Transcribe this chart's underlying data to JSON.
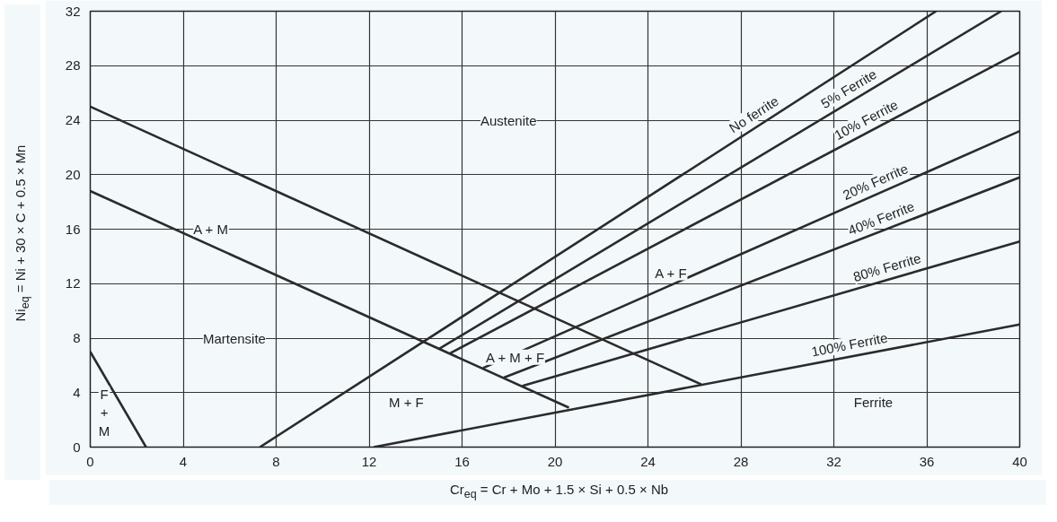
{
  "chart_data": {
    "type": "line",
    "xlabel": "Cr$_{eq}$ = Cr + Mo + 1.5 × Si + 0.5 × Nb",
    "ylabel": "Ni$_{eq}$ = Ni + 30 × C + 0.5 × Mn",
    "xlim": [
      0,
      40
    ],
    "ylim": [
      0,
      32
    ],
    "xticks": [
      0,
      4,
      8,
      12,
      16,
      20,
      24,
      28,
      32,
      36,
      40
    ],
    "yticks": [
      0,
      4,
      8,
      12,
      16,
      20,
      24,
      28,
      32
    ],
    "grid": true,
    "line_style": "solid",
    "marker": "none",
    "series": [
      {
        "color": "#2b2b2b",
        "x": [
          0,
          26.3
        ],
        "values": [
          25,
          4.6
        ]
      },
      {
        "color": "#2b2b2b",
        "x": [
          0,
          20.6
        ],
        "values": [
          18.8,
          2.9
        ]
      },
      {
        "color": "#2b2b2b",
        "x": [
          0,
          2.4
        ],
        "values": [
          7,
          0
        ]
      },
      {
        "name": "No ferrite",
        "color": "#2b2b2b",
        "x": [
          7.3,
          36.4
        ],
        "values": [
          0,
          32
        ]
      },
      {
        "name": "5% Ferrite",
        "color": "#2b2b2b",
        "x": [
          15.0,
          39.2
        ],
        "values": [
          7.2,
          32
        ]
      },
      {
        "name": "10% Ferrite",
        "color": "#2b2b2b",
        "x": [
          15.5,
          40
        ],
        "values": [
          6.9,
          29
        ]
      },
      {
        "name": "20% Ferrite",
        "color": "#2b2b2b",
        "x": [
          16.9,
          40
        ],
        "values": [
          5.8,
          23.2
        ]
      },
      {
        "name": "40% Ferrite",
        "color": "#2b2b2b",
        "x": [
          17.8,
          40
        ],
        "values": [
          5.1,
          19.8
        ]
      },
      {
        "name": "80% Ferrite",
        "color": "#2b2b2b",
        "x": [
          18.6,
          40
        ],
        "values": [
          4.5,
          15.1
        ]
      },
      {
        "name": "100% Ferrite",
        "color": "#2b2b2b",
        "x": [
          12.2,
          40
        ],
        "values": [
          0,
          9.0
        ]
      }
    ],
    "annotations": [
      "Austenite",
      {
        "text": "A + M",
        "x": 5.2,
        "y": 16
      },
      "Martensite",
      {
        "text": "A + F",
        "x": 25,
        "y": 12.8
      },
      {
        "text": "A + M + F",
        "x": 18.3,
        "y": 6.6
      },
      {
        "text": "M + F",
        "x": 13.6,
        "y": 3.3
      },
      {
        "text": "Ferrite",
        "x": 33.7,
        "y": 3.3
      },
      "F\n+\nM"
    ]
  }
}
